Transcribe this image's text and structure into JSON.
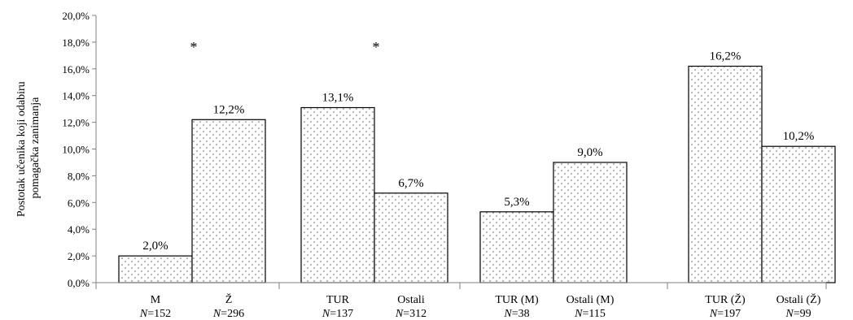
{
  "chart_data": {
    "type": "bar",
    "ylabel": "Postotak učenika koji odabiru pomagačka zanimanja",
    "ylabel_lines": [
      "Postotak učenika koji odabiru",
      "pomagačka zanimanja"
    ],
    "ylim": [
      0,
      20
    ],
    "yticks": [
      "0,0%",
      "2,0%",
      "4,0%",
      "6,0%",
      "8,0%",
      "10,0%",
      "12,0%",
      "14,0%",
      "16,0%",
      "18,0%",
      "20,0%"
    ],
    "grid": false,
    "legend": "none",
    "fill_pattern": "dots",
    "colors": {
      "bar_fill": "#ffffff",
      "bar_stroke": "#000000",
      "dot": "#555555",
      "axis": "#808080"
    },
    "groups": [
      {
        "significance": "*",
        "bars": [
          {
            "category": "M",
            "n_label": "N",
            "n_value": "=152",
            "value": 2.0,
            "label": "2,0%"
          },
          {
            "category": "Ž",
            "n_label": "N",
            "n_value": "=296",
            "value": 12.2,
            "label": "12,2%"
          }
        ]
      },
      {
        "significance": "*",
        "bars": [
          {
            "category": "TUR",
            "n_label": "N",
            "n_value": "=137",
            "value": 13.1,
            "label": "13,1%"
          },
          {
            "category": "Ostali",
            "n_label": "N",
            "n_value": "=312",
            "value": 6.7,
            "label": "6,7%"
          }
        ]
      },
      {
        "significance": "",
        "bars": [
          {
            "category": "TUR (M)",
            "n_label": "N",
            "n_value": "=38",
            "value": 5.3,
            "label": "5,3%"
          },
          {
            "category": "Ostali (M)",
            "n_label": "N",
            "n_value": "=115",
            "value": 9.0,
            "label": "9,0%"
          }
        ]
      },
      {
        "significance": "",
        "bars": [
          {
            "category": "TUR (Ž)",
            "n_label": "N",
            "n_value": "=197",
            "value": 16.2,
            "label": "16,2%"
          },
          {
            "category": "Ostali (Ž)",
            "n_label": "N",
            "n_value": "=99",
            "value": 10.2,
            "label": "10,2%"
          }
        ]
      }
    ]
  }
}
